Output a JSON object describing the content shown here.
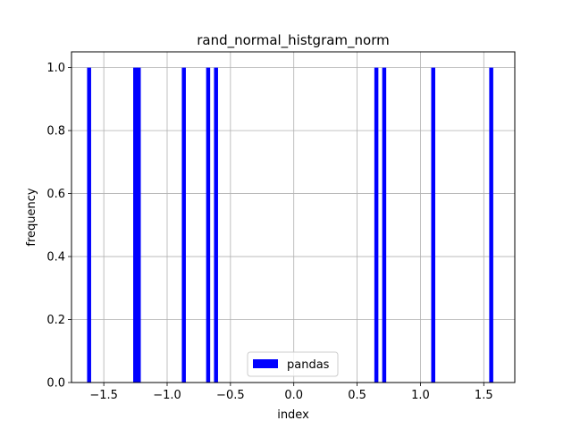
{
  "chart_data": {
    "type": "bar",
    "title": "rand_normal_histgram_norm",
    "xlabel": "index",
    "ylabel": "frequency",
    "xlim": [
      -1.755,
      1.745
    ],
    "ylim": [
      0.0,
      1.05
    ],
    "xticks": [
      -1.5,
      -1.0,
      -0.5,
      0.0,
      0.5,
      1.0,
      1.5
    ],
    "xtick_labels": [
      "−1.5",
      "−1.0",
      "−0.5",
      "0.0",
      "0.5",
      "1.0",
      "1.5"
    ],
    "yticks": [
      0.0,
      0.2,
      0.4,
      0.6,
      0.8,
      1.0
    ],
    "ytick_labels": [
      "0.0",
      "0.2",
      "0.4",
      "0.6",
      "0.8",
      "1.0"
    ],
    "grid": true,
    "legend_position": "lower center",
    "series": [
      {
        "name": "pandas",
        "color": "#0000ff",
        "bin_width": 0.0318,
        "x": [
          -1.616,
          -1.252,
          -1.224,
          -0.868,
          -0.676,
          -0.614,
          0.652,
          0.714,
          1.101,
          1.559
        ],
        "values": [
          1.0,
          1.0,
          1.0,
          1.0,
          1.0,
          1.0,
          1.0,
          1.0,
          1.0,
          1.0
        ]
      }
    ]
  }
}
